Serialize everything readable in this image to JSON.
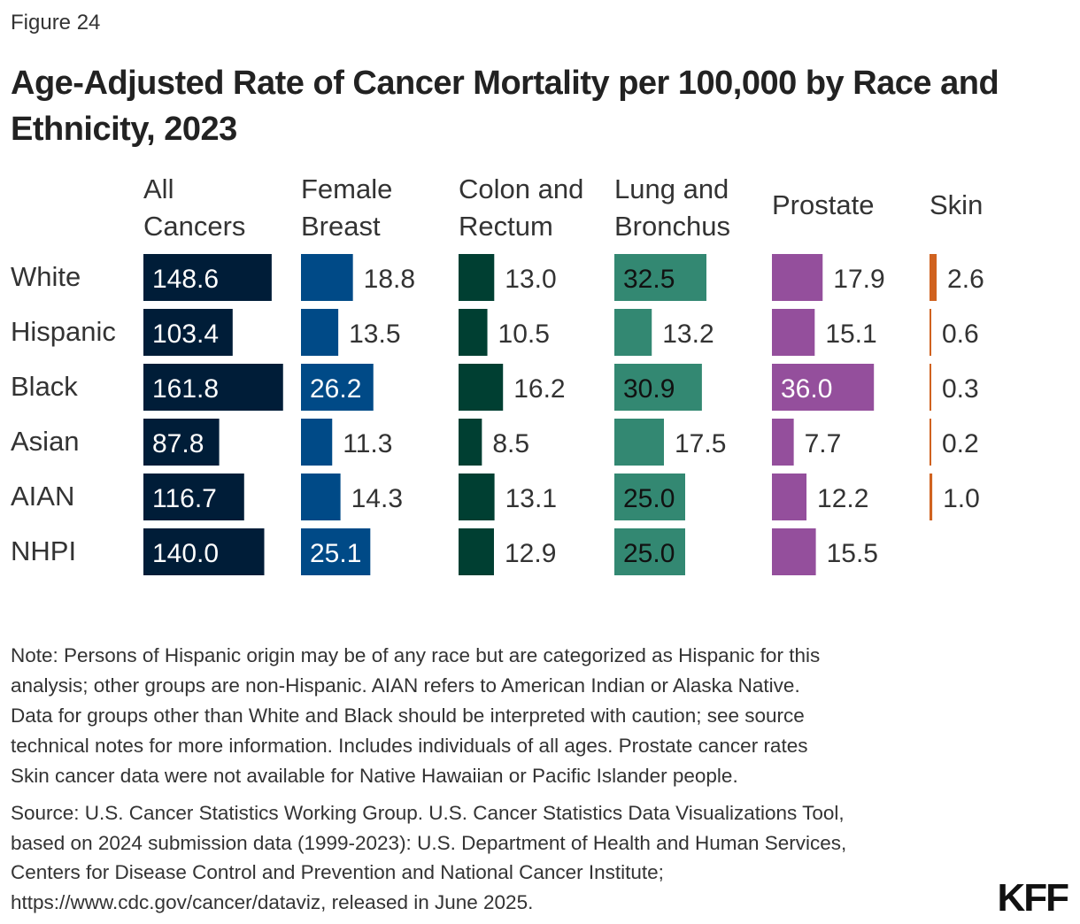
{
  "figure_label": "Figure 24",
  "title": "Age-Adjusted Rate of Cancer Mortality per 100,000 by Race and Ethnicity, 2023",
  "chart_data": {
    "type": "bar",
    "orientation": "horizontal",
    "layout": "small-multiples",
    "categories": [
      "White",
      "Hispanic",
      "Black",
      "Asian",
      "AIAN",
      "NHPI"
    ],
    "series": [
      {
        "name": [
          "All",
          "Cancers"
        ],
        "color": "#001d38",
        "values": [
          148.6,
          103.4,
          161.8,
          87.8,
          116.7,
          140.0
        ]
      },
      {
        "name": [
          "Female",
          "Breast"
        ],
        "color": "#004a87",
        "values": [
          18.8,
          13.5,
          26.2,
          11.3,
          14.3,
          25.1
        ]
      },
      {
        "name": [
          "Colon and",
          "Rectum"
        ],
        "color": "#003f32",
        "values": [
          13.0,
          10.5,
          16.2,
          8.5,
          13.1,
          12.9
        ]
      },
      {
        "name": [
          "Lung and",
          "Bronchus"
        ],
        "color": "#338872",
        "values": [
          32.5,
          13.2,
          30.9,
          17.5,
          25.0,
          25.0
        ]
      },
      {
        "name": [
          "Prostate"
        ],
        "color": "#944f9c",
        "values": [
          17.9,
          15.1,
          36.0,
          7.7,
          12.2,
          15.5
        ]
      },
      {
        "name": [
          "Skin"
        ],
        "color": "#d0621f",
        "values": [
          2.6,
          0.6,
          0.3,
          0.2,
          1.0,
          null
        ]
      }
    ],
    "grid": false,
    "legend": "none"
  },
  "note_lines": [
    "Note: Persons of Hispanic origin may be of any race but are categorized as Hispanic for this",
    "analysis; other groups are non-Hispanic. AIAN refers to American Indian or Alaska Native.",
    "Data for groups other than White and Black should be interpreted with caution; see source",
    "technical notes for more information. Includes individuals of all ages. Prostate cancer rates",
    "Skin cancer data were not available for Native Hawaiian or Pacific Islander people."
  ],
  "source_lines": [
    "Source: U.S. Cancer Statistics Working Group. U.S. Cancer Statistics Data Visualizations Tool,",
    "based on 2024 submission data (1999-2023): U.S. Department of Health and Human Services,",
    "Centers for Disease Control and Prevention and National Cancer Institute;",
    "https://www.cdc.gov/cancer/dataviz, released in June 2025."
  ],
  "logo": "KFF"
}
